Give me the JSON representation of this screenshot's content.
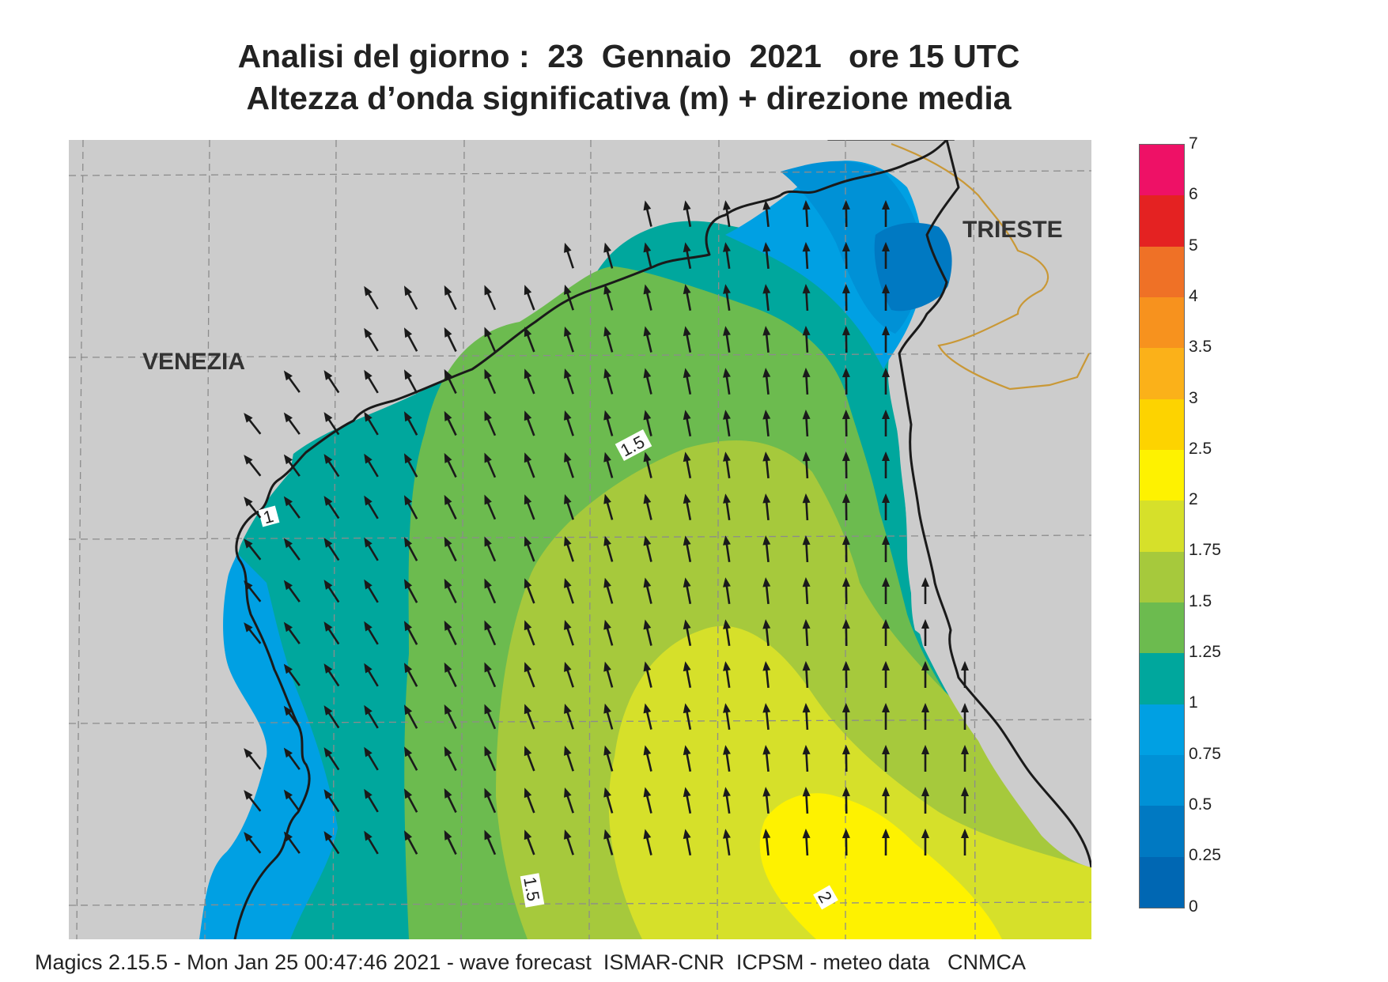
{
  "title_line1": "Analisi del giorno :  23  Gennaio  2021   ore 15 UTC",
  "title_line2": "Altezza d’onda significativa (m) + direzione media",
  "cities": {
    "venezia": "VENEZIA",
    "trieste": "TRIESTE"
  },
  "contour_labels": {
    "c1": "1",
    "c15_north": "1.5",
    "c15_south": "1.5",
    "c2": "2"
  },
  "legend": {
    "labels": [
      "7",
      "6",
      "5",
      "4",
      "3.5",
      "3",
      "2.5",
      "2",
      "1.75",
      "1.5",
      "1.25",
      "1",
      "0.75",
      "0.5",
      "0.25",
      "0"
    ],
    "colors_top_to_bottom": [
      "#ee1166",
      "#e42222",
      "#ef7126",
      "#f7921e",
      "#fbb119",
      "#fdd300",
      "#fef200",
      "#d6e02a",
      "#a6c93c",
      "#6cbb4f",
      "#00a79d",
      "#00a0e3",
      "#0091d6",
      "#0079c2",
      "#0067b3"
    ]
  },
  "wave_height_fields": {
    "unit": "m",
    "colors": {
      "land": "#cccccc",
      "grid": "#8c8c8c",
      "coast": "#1a1a1a",
      "border": "#c99836",
      "arrow": "#1a1a1a"
    },
    "mean_direction": "towards north / north-west"
  },
  "footer": "Magics 2.15.5 - Mon Jan 25 00:47:46 2021 - wave forecast  ISMAR-CNR  ICPSM - meteo data   CNMCA"
}
